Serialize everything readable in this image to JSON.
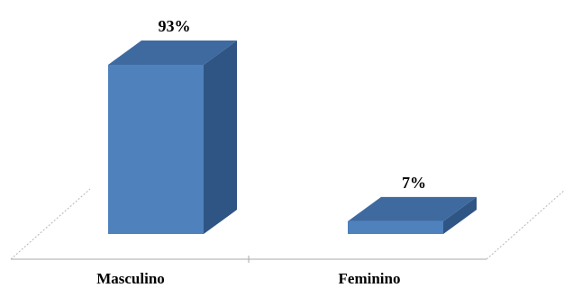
{
  "chart_data": {
    "type": "bar",
    "categories": [
      "Masculino",
      "Feminino"
    ],
    "values": [
      93,
      7
    ],
    "value_labels": [
      "93%",
      "7%"
    ],
    "ylim": [
      0,
      100
    ],
    "grid": false,
    "style": "3d",
    "colors": {
      "front": "#4f81bd",
      "top": "#3e6aa0",
      "side": "#2f5585",
      "floor_line": "#aaaaaa"
    }
  }
}
